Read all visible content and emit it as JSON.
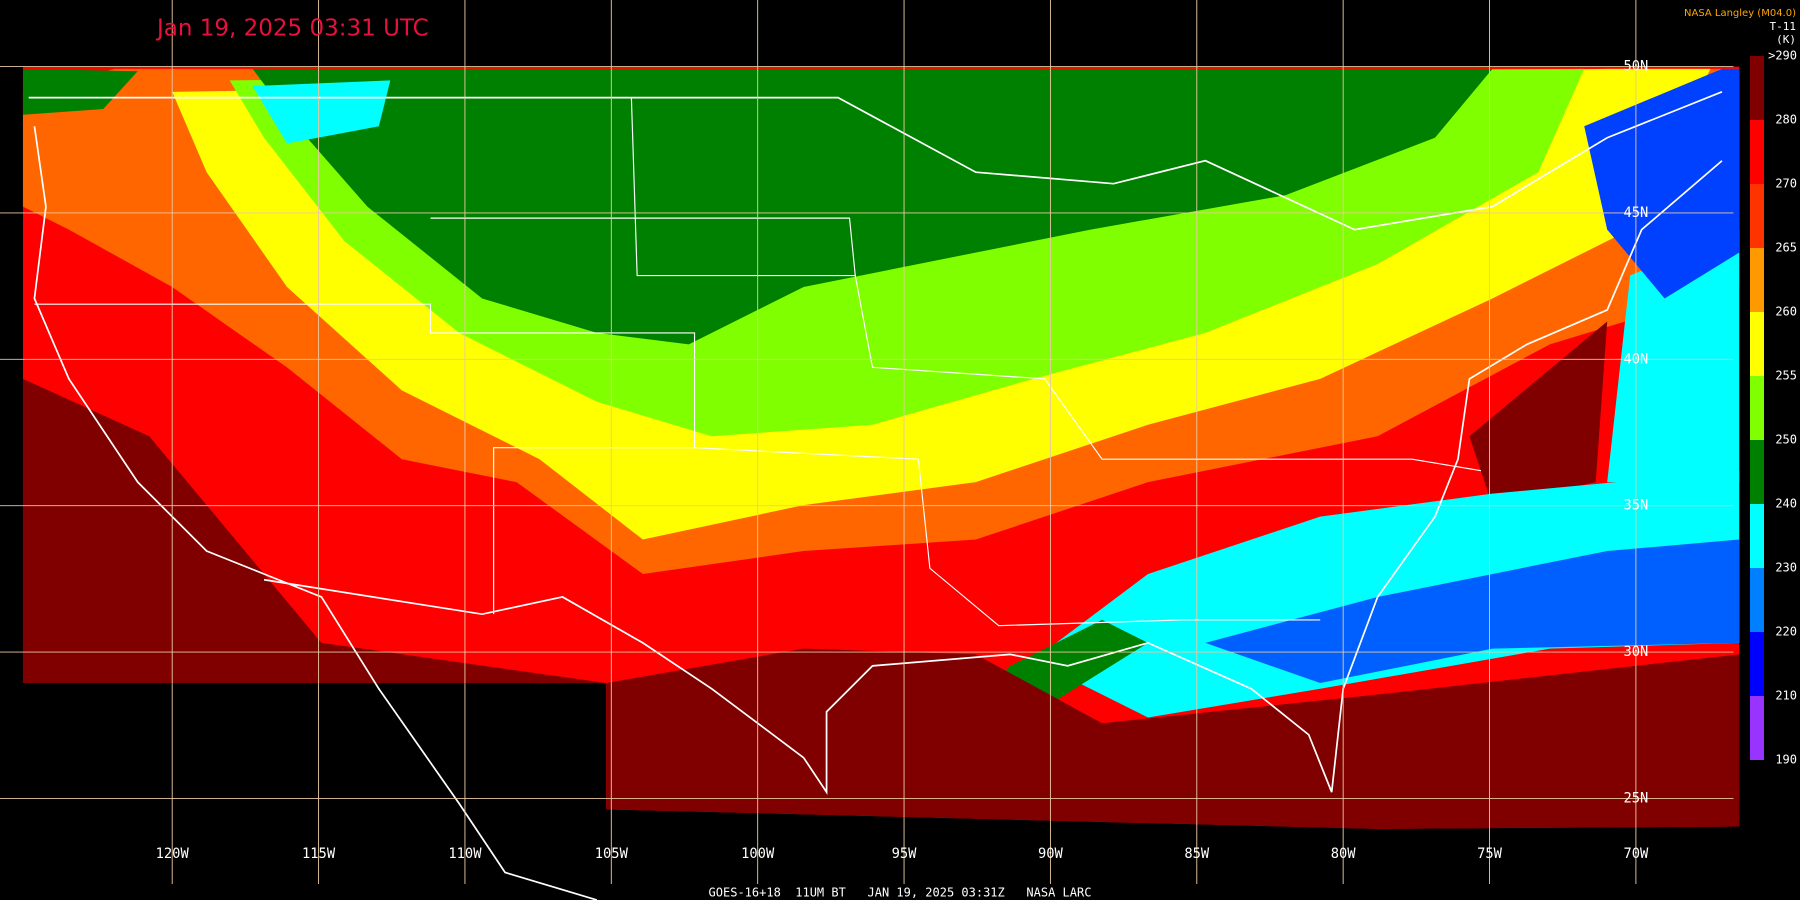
{
  "title": "Jan 19, 2025 03:31 UTC",
  "source": "NASA Langley (M04.0)",
  "footer": "GOES-16+18  11UM BT   JAN 19, 2025 03:31Z   NASA LARC",
  "longitudes": [
    "120W",
    "115W",
    "110W",
    "105W",
    "100W",
    "95W",
    "90W",
    "85W",
    "80W",
    "75W",
    "70W"
  ],
  "latitudes": [
    "50N",
    "45N",
    "40N",
    "35N",
    "30N",
    "25N"
  ],
  "legend": {
    "title": "T-11",
    "unit": "(K)",
    "labels": [
      ">290",
      "280",
      "270",
      "265",
      "260",
      "255",
      "250",
      "240",
      "230",
      "220",
      "210",
      "190"
    ]
  }
}
